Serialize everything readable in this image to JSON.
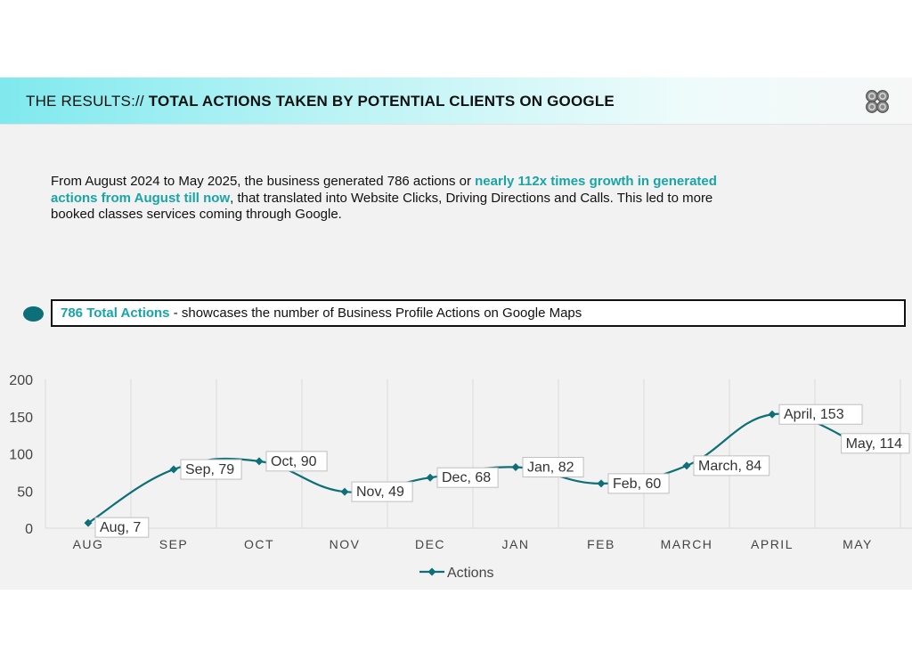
{
  "header": {
    "prefix": "THE RESULTS://",
    "title": "TOTAL ACTIONS TAKEN BY POTENTIAL CLIENTS ON GOOGLE",
    "logo_icon": "quad-circle-logo-icon"
  },
  "intro": {
    "part1": "From August 2024 to May 2025, the business generated 786 actions or ",
    "highlight": "nearly 112x times growth in generated actions from August till now",
    "part2": ", that translated into Website Clicks, Driving Directions and Calls. This led to more booked classes services coming through Google."
  },
  "callout": {
    "highlight": "786 Total Actions",
    "text": " - showcases the number of Business Profile Actions on Google Maps"
  },
  "colors": {
    "accent": "#19a4a8",
    "series": "#0d6f77"
  },
  "chart_data": {
    "type": "line",
    "categories": [
      "AUG",
      "SEP",
      "OCT",
      "NOV",
      "DEC",
      "JAN",
      "FEB",
      "MARCH",
      "APRIL",
      "MAY"
    ],
    "series": [
      {
        "name": "Actions",
        "values": [
          7,
          79,
          90,
          49,
          68,
          82,
          60,
          84,
          153,
          114
        ]
      }
    ],
    "data_labels": [
      "Aug, 7",
      "Sep, 79",
      "Oct, 90",
      "Nov, 49",
      "Dec, 68",
      "Jan, 82",
      "Feb, 60",
      "March, 84",
      "April, 153",
      "May, 114"
    ],
    "yticks": [
      "0",
      "50",
      "100",
      "150",
      "200"
    ],
    "ylim": [
      0,
      200
    ],
    "grid": "vertical",
    "smooth": true,
    "legend": "bottom",
    "title": "",
    "xlabel": "",
    "ylabel": ""
  }
}
